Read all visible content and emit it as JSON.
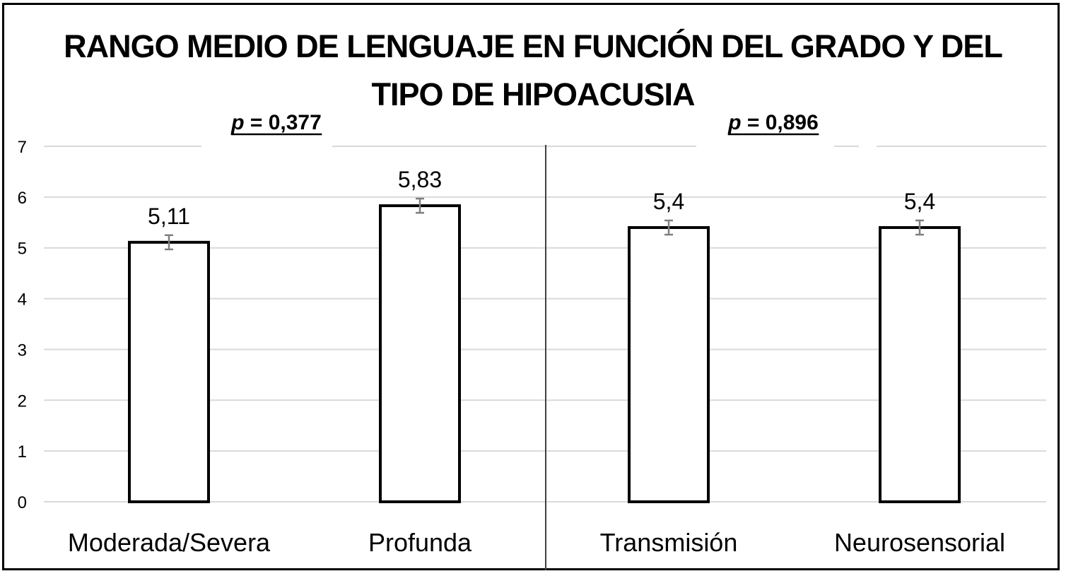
{
  "chart_data": {
    "type": "bar",
    "title_lines": [
      "RANGO MEDIO DE LENGUAJE EN FUNCIÓN DEL GRADO Y DEL",
      "TIPO DE HIPOACUSIA"
    ],
    "categories": [
      "Moderada/Severa",
      "Profunda",
      "Transmisión",
      "Neurosensorial"
    ],
    "values": [
      5.11,
      5.83,
      5.4,
      5.4
    ],
    "value_labels": [
      "5,11",
      "5,83",
      "5,4",
      "5,4"
    ],
    "error": [
      0.14,
      0.14,
      0.14,
      0.14
    ],
    "ylim": [
      0,
      7
    ],
    "yticks": [
      0,
      1,
      2,
      3,
      4,
      5,
      6,
      7
    ],
    "grid": true,
    "groups": [
      {
        "categories": [
          "Moderada/Severa",
          "Profunda"
        ],
        "p_prefix": "p",
        "p_rest": " = 0,377"
      },
      {
        "categories": [
          "Transmisión",
          "Neurosensorial"
        ],
        "p_prefix": "p",
        "p_rest": " = 0,896"
      }
    ],
    "colors": {
      "bar_fill": "#ffffff",
      "bar_stroke": "#000000",
      "grid": "#d9d9d9",
      "error_bar": "#7f7f7f"
    }
  }
}
